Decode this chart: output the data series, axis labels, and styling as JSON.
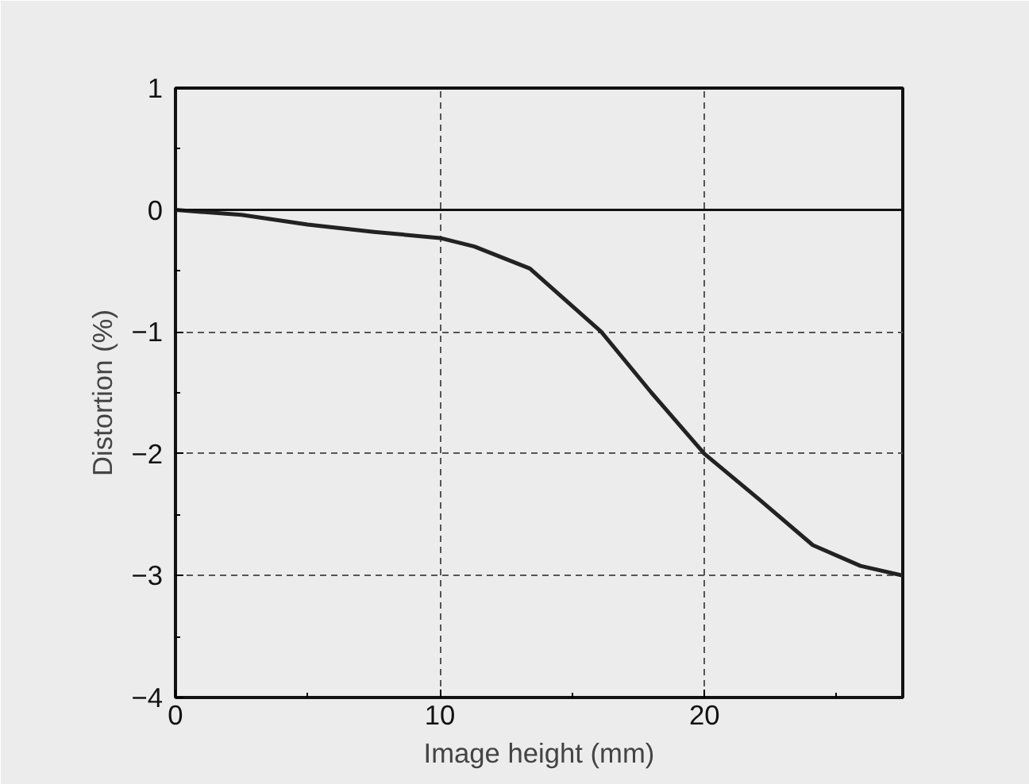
{
  "chart_data": {
    "type": "line",
    "xlabel": "Image height (mm)",
    "ylabel": "Distortion (%)",
    "x": [
      0,
      2.5,
      5,
      7.5,
      10,
      11.3,
      13.4,
      16.1,
      18,
      20,
      22.1,
      24.1,
      25.9,
      27.5
    ],
    "series": [
      {
        "color": "#222222",
        "values": [
          0,
          -0.04,
          -0.12,
          -0.18,
          -0.23,
          -0.3,
          -0.48,
          -1.0,
          -1.5,
          -2.0,
          -2.38,
          -2.75,
          -2.92,
          -3.0
        ]
      }
    ],
    "xlim": [
      0,
      27.5
    ],
    "ylim": [
      -4,
      1
    ],
    "xticks": [
      0,
      10,
      20
    ],
    "yticks": [
      -4,
      -3,
      -2,
      -1,
      0,
      1
    ],
    "grid": true,
    "line_style": "solid",
    "marker": "none",
    "ref_lines": [
      {
        "axis": "y",
        "value": 0,
        "color": "#111111",
        "line_style": "solid"
      }
    ]
  }
}
